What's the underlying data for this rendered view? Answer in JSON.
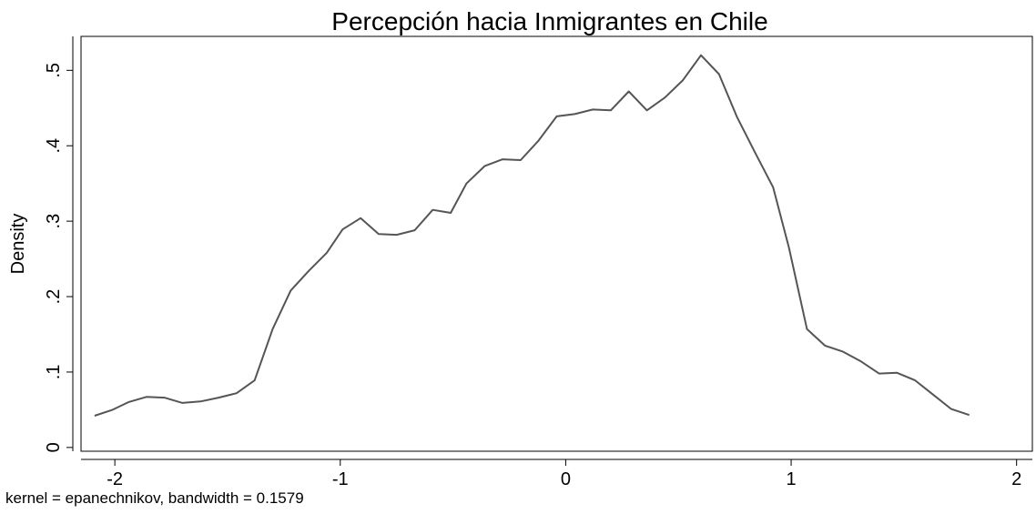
{
  "chart_data": {
    "type": "line",
    "title": "Percepción hacia Inmigrantes en Chile",
    "xlabel": "",
    "ylabel": "Density",
    "note": "kernel = epanechnikov, bandwidth = 0.1579",
    "xlim": [
      -2.15,
      2.07
    ],
    "ylim": [
      -0.005,
      0.545
    ],
    "xticks": [
      -2,
      -1,
      0,
      1,
      2
    ],
    "xtick_labels": [
      "-2",
      "-1",
      "0",
      "1",
      "2"
    ],
    "yticks": [
      0,
      0.1,
      0.2,
      0.3,
      0.4,
      0.5
    ],
    "ytick_labels": [
      "0",
      ".1",
      ".2",
      ".3",
      ".4",
      ".5"
    ],
    "grid": false,
    "line_color": "#555555",
    "series": [
      {
        "x": [
          -2.09,
          -2.01,
          -1.94,
          -1.86,
          -1.78,
          -1.7,
          -1.62,
          -1.54,
          -1.46,
          -1.38,
          -1.3,
          -1.22,
          -1.14,
          -1.06,
          -0.99,
          -0.91,
          -0.83,
          -0.75,
          -0.67,
          -0.59,
          -0.51,
          -0.44,
          -0.36,
          -0.28,
          -0.2,
          -0.12,
          -0.04,
          0.04,
          0.12,
          0.2,
          0.28,
          0.36,
          0.44,
          0.52,
          0.6,
          0.68,
          0.76,
          0.84,
          0.92,
          0.99,
          1.07,
          1.15,
          1.23,
          1.31,
          1.39,
          1.47,
          1.55,
          1.63,
          1.71,
          1.79
        ],
        "values": [
          0.042,
          0.05,
          0.06,
          0.067,
          0.066,
          0.059,
          0.061,
          0.066,
          0.072,
          0.089,
          0.157,
          0.208,
          0.234,
          0.258,
          0.289,
          0.304,
          0.283,
          0.282,
          0.288,
          0.315,
          0.311,
          0.35,
          0.373,
          0.382,
          0.381,
          0.407,
          0.439,
          0.442,
          0.448,
          0.447,
          0.472,
          0.447,
          0.464,
          0.487,
          0.52,
          0.495,
          0.438,
          0.391,
          0.345,
          0.265,
          0.157,
          0.135,
          0.127,
          0.114,
          0.098,
          0.099,
          0.089,
          0.07,
          0.051,
          0.043
        ]
      }
    ]
  }
}
